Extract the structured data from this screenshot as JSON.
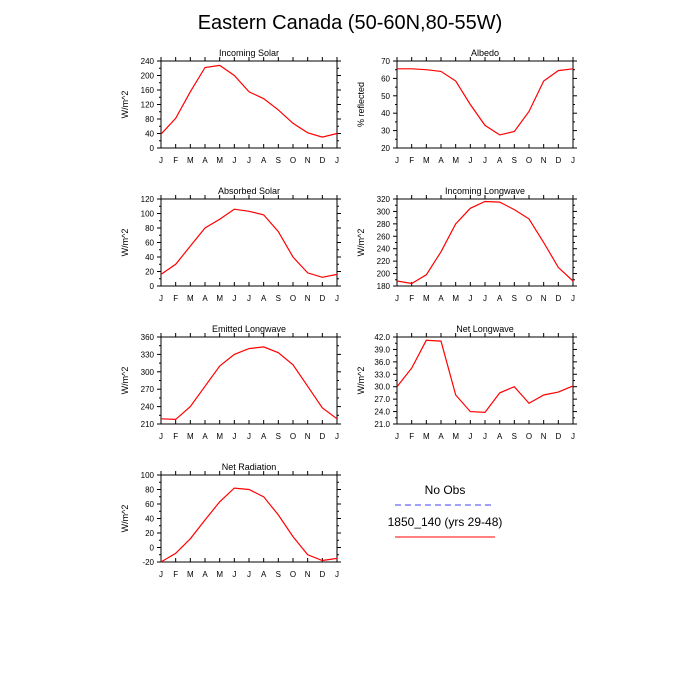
{
  "title": "Eastern Canada (50-60N,80-55W)",
  "months": [
    "J",
    "F",
    "M",
    "A",
    "M",
    "J",
    "J",
    "A",
    "S",
    "O",
    "N",
    "D",
    "J"
  ],
  "colors": {
    "model": "#ff0000",
    "obs": "#4040ff",
    "axis": "#000000"
  },
  "legend": {
    "obs_label": "No Obs",
    "model_label": "1850_140 (yrs 29-48)"
  },
  "chart_data": [
    {
      "type": "line",
      "title": "Incoming Solar",
      "ylabel": "W/m^2",
      "ylim": [
        0,
        240
      ],
      "yticks": [
        0,
        40,
        80,
        120,
        160,
        200,
        240
      ],
      "ytick_labels": [
        "0",
        "40",
        "80",
        "120",
        "160",
        "200",
        "240"
      ],
      "series": [
        {
          "values": [
            38,
            82,
            155,
            222,
            228,
            200,
            155,
            136,
            105,
            68,
            42,
            30,
            40
          ]
        }
      ]
    },
    {
      "type": "line",
      "title": "Albedo",
      "ylabel": "% reflected",
      "ylim": [
        20,
        70
      ],
      "yticks": [
        20,
        30,
        40,
        50,
        60,
        70
      ],
      "ytick_labels": [
        "20",
        "30",
        "40",
        "50",
        "60",
        "70"
      ],
      "series": [
        {
          "values": [
            65.5,
            65.5,
            65,
            64,
            58.5,
            45,
            33,
            27.5,
            29.5,
            41,
            58.5,
            64.5,
            65.5
          ]
        }
      ]
    },
    {
      "type": "line",
      "title": "Absorbed Solar",
      "ylabel": "W/m^2",
      "ylim": [
        0,
        120
      ],
      "yticks": [
        0,
        20,
        40,
        60,
        80,
        100,
        120
      ],
      "ytick_labels": [
        "0",
        "20",
        "40",
        "60",
        "80",
        "100",
        "120"
      ],
      "series": [
        {
          "values": [
            16,
            30,
            55,
            80,
            92,
            106,
            103,
            98,
            75,
            40,
            18,
            12,
            16
          ]
        }
      ]
    },
    {
      "type": "line",
      "title": "Incoming Longwave",
      "ylabel": "W/m^2",
      "ylim": [
        180,
        320
      ],
      "yticks": [
        180,
        200,
        220,
        240,
        260,
        280,
        300,
        320
      ],
      "ytick_labels": [
        "180",
        "200",
        "220",
        "240",
        "260",
        "280",
        "300",
        "320"
      ],
      "series": [
        {
          "values": [
            188,
            184,
            198,
            235,
            280,
            305,
            316,
            315,
            303,
            288,
            250,
            210,
            188
          ]
        }
      ]
    },
    {
      "type": "line",
      "title": "Emitted Longwave",
      "ylabel": "W/m^2",
      "ylim": [
        210,
        360
      ],
      "yticks": [
        210,
        240,
        270,
        300,
        330,
        360
      ],
      "ytick_labels": [
        "210",
        "240",
        "270",
        "300",
        "330",
        "360"
      ],
      "series": [
        {
          "values": [
            219,
            218,
            240,
            275,
            310,
            330,
            340,
            343,
            333,
            312,
            275,
            238,
            219
          ]
        }
      ]
    },
    {
      "type": "line",
      "title": "Net Longwave",
      "ylabel": "W/m^2",
      "ylim": [
        21,
        42
      ],
      "yticks": [
        21,
        24,
        27,
        30,
        33,
        36,
        39,
        42
      ],
      "ytick_labels": [
        "21.0",
        "24.0",
        "27.0",
        "30.0",
        "33.0",
        "36.0",
        "39.0",
        "42.0"
      ],
      "series": [
        {
          "values": [
            30,
            34.5,
            41.2,
            41,
            28,
            24,
            23.8,
            28.5,
            30,
            26,
            28,
            28.7,
            30.2
          ]
        }
      ]
    },
    {
      "type": "line",
      "title": "Net Radiation",
      "ylabel": "W/m^2",
      "ylim": [
        -20,
        100
      ],
      "yticks": [
        -20,
        0,
        20,
        40,
        60,
        80,
        100
      ],
      "ytick_labels": [
        "-20",
        "0",
        "20",
        "40",
        "60",
        "80",
        "100"
      ],
      "series": [
        {
          "values": [
            -20,
            -8,
            12,
            38,
            63,
            82,
            80,
            70,
            45,
            15,
            -10,
            -18,
            -15
          ]
        }
      ]
    }
  ]
}
